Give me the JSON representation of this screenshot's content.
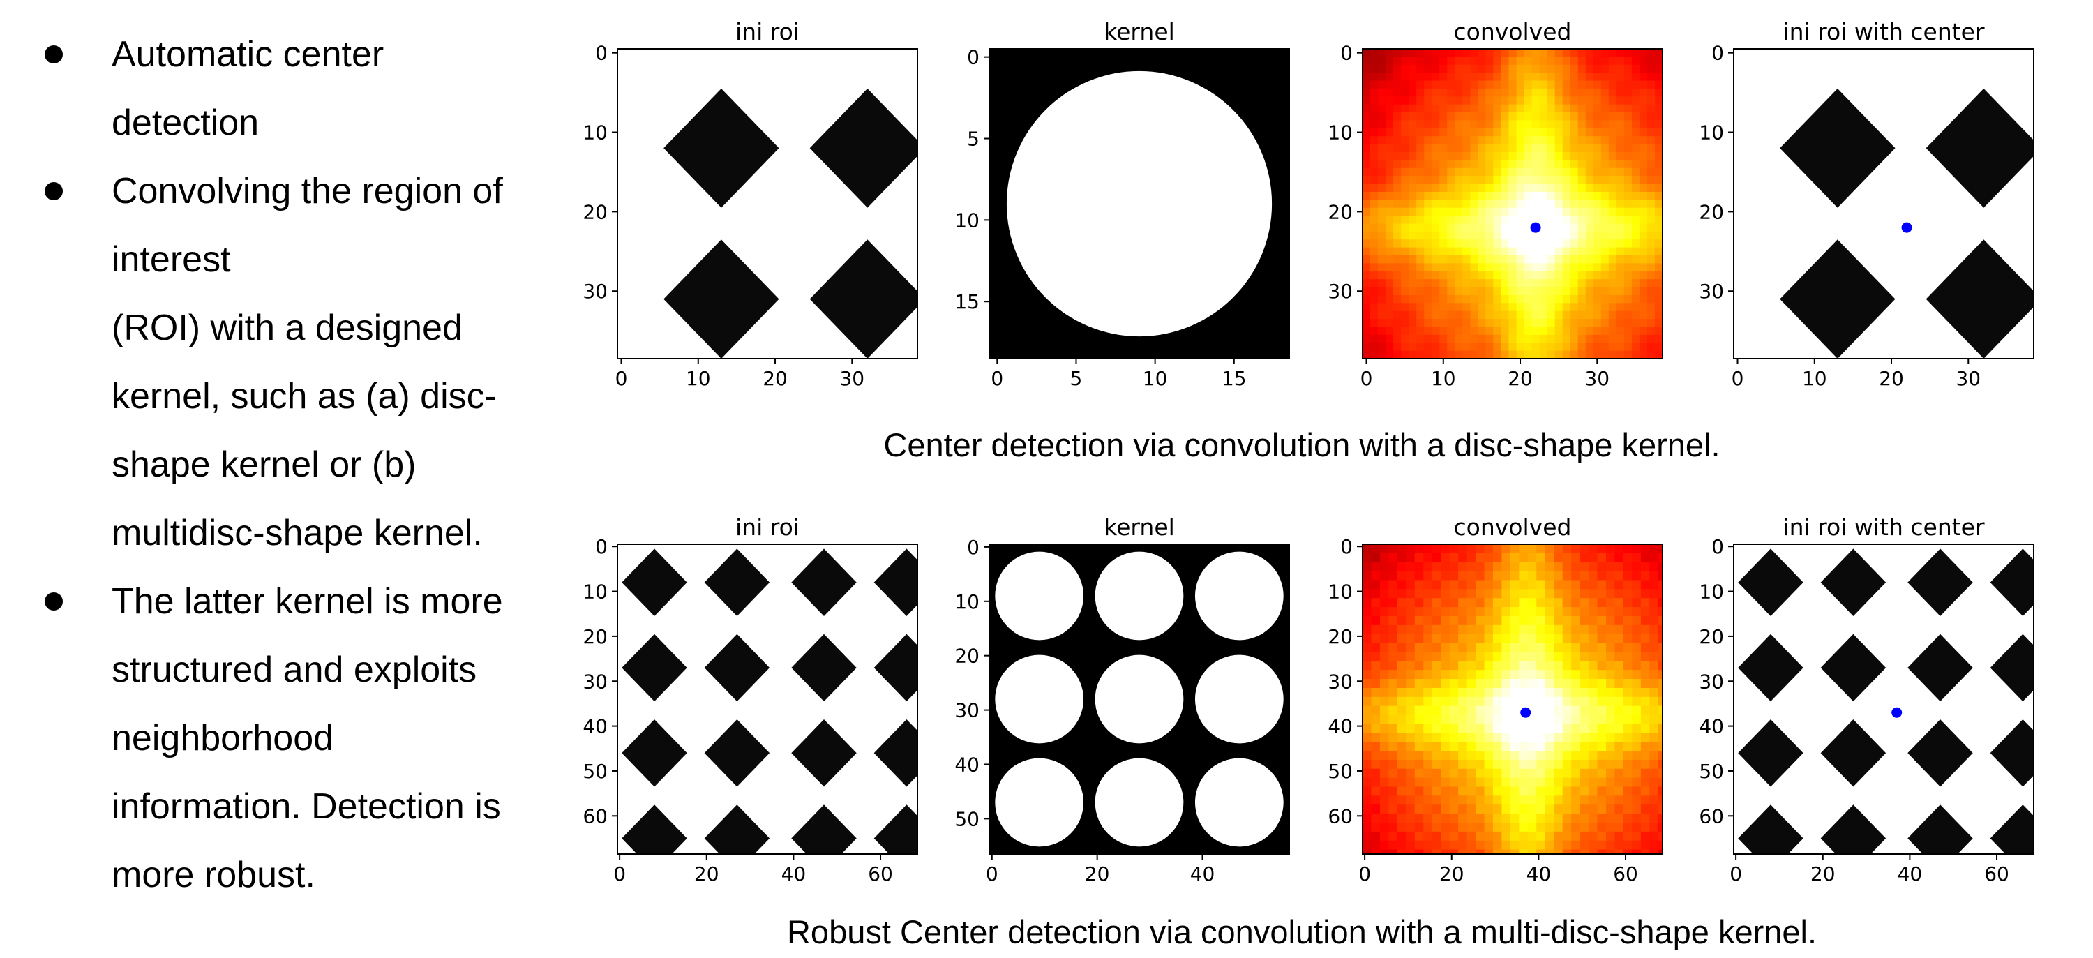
{
  "bullets": {
    "items": [
      [
        "Automatic center",
        "detection"
      ],
      [
        "Convolving the region of",
        "interest",
        "(ROI) with a designed",
        "kernel, such as (a) disc-",
        "shape kernel or (b)",
        "multidisc-shape kernel."
      ],
      [
        "The latter kernel is more",
        "structured and exploits",
        "neighborhood",
        "information. Detection is",
        "more robust."
      ]
    ]
  },
  "captions": {
    "top": "Center detection via convolution with a disc-shape kernel.",
    "bottom": "Robust Center detection via convolution with a multi-disc-shape kernel."
  },
  "colors": {
    "center_dot": "#0000ff",
    "pattern": "#000000",
    "background": "#ffffff"
  },
  "chart_data": [
    {
      "type": "heatmap",
      "title": "ini roi",
      "xlim": [
        0,
        38
      ],
      "ylim": [
        0,
        38
      ],
      "xticks": [
        0,
        10,
        20,
        30
      ],
      "yticks": [
        0,
        10,
        20,
        30
      ],
      "colormap": "binary",
      "features": {
        "shape": "diamond",
        "centers": [
          [
            13,
            12
          ],
          [
            32,
            12
          ],
          [
            13,
            31
          ],
          [
            32,
            31
          ]
        ],
        "radius": 7
      }
    },
    {
      "type": "heatmap",
      "title": "kernel",
      "xlim": [
        0,
        18
      ],
      "ylim": [
        0,
        18
      ],
      "xticks": [
        0,
        5,
        10,
        15
      ],
      "yticks": [
        0,
        5,
        10,
        15
      ],
      "colormap": "binary",
      "features": {
        "shape": "disc",
        "centers": [
          [
            9,
            9
          ]
        ],
        "radius": 9
      }
    },
    {
      "type": "heatmap",
      "title": "convolved",
      "xlim": [
        0,
        38
      ],
      "ylim": [
        0,
        38
      ],
      "xticks": [
        0,
        10,
        20,
        30
      ],
      "yticks": [
        0,
        10,
        20,
        30
      ],
      "colormap": "hot",
      "center": [
        22,
        22
      ]
    },
    {
      "type": "heatmap",
      "title": "ini roi with center",
      "xlim": [
        0,
        38
      ],
      "ylim": [
        0,
        38
      ],
      "xticks": [
        0,
        10,
        20,
        30
      ],
      "yticks": [
        0,
        10,
        20,
        30
      ],
      "colormap": "binary",
      "features": {
        "shape": "diamond",
        "centers": [
          [
            13,
            12
          ],
          [
            32,
            12
          ],
          [
            13,
            31
          ],
          [
            32,
            31
          ]
        ],
        "radius": 7
      },
      "center": [
        22,
        22
      ]
    },
    {
      "type": "heatmap",
      "title": "ini roi",
      "xlim": [
        0,
        68
      ],
      "ylim": [
        0,
        68
      ],
      "xticks": [
        0,
        20,
        40,
        60
      ],
      "yticks": [
        0,
        10,
        20,
        30,
        40,
        50,
        60
      ],
      "colormap": "binary",
      "features": {
        "shape": "diamond",
        "centers_x": [
          8,
          27,
          47,
          66
        ],
        "centers_y": [
          8,
          27,
          46,
          65
        ],
        "radius": 7
      }
    },
    {
      "type": "heatmap",
      "title": "kernel",
      "xlim": [
        0,
        56
      ],
      "ylim": [
        0,
        56
      ],
      "xticks": [
        0,
        20,
        40
      ],
      "yticks": [
        0,
        10,
        20,
        30,
        40,
        50
      ],
      "colormap": "binary",
      "features": {
        "shape": "disc",
        "centers_x": [
          9,
          28,
          47
        ],
        "centers_y": [
          9,
          28,
          47
        ],
        "radius": 9
      }
    },
    {
      "type": "heatmap",
      "title": "convolved",
      "xlim": [
        0,
        68
      ],
      "ylim": [
        0,
        68
      ],
      "xticks": [
        0,
        20,
        40,
        60
      ],
      "yticks": [
        0,
        10,
        20,
        30,
        40,
        50,
        60
      ],
      "colormap": "hot",
      "center": [
        37,
        37
      ]
    },
    {
      "type": "heatmap",
      "title": "ini roi with center",
      "xlim": [
        0,
        68
      ],
      "ylim": [
        0,
        68
      ],
      "xticks": [
        0,
        20,
        40,
        60
      ],
      "yticks": [
        0,
        10,
        20,
        30,
        40,
        50,
        60
      ],
      "colormap": "binary",
      "features": {
        "shape": "diamond",
        "centers_x": [
          8,
          27,
          47,
          66
        ],
        "centers_y": [
          8,
          27,
          46,
          65
        ],
        "radius": 7
      },
      "center": [
        37,
        37
      ]
    }
  ]
}
